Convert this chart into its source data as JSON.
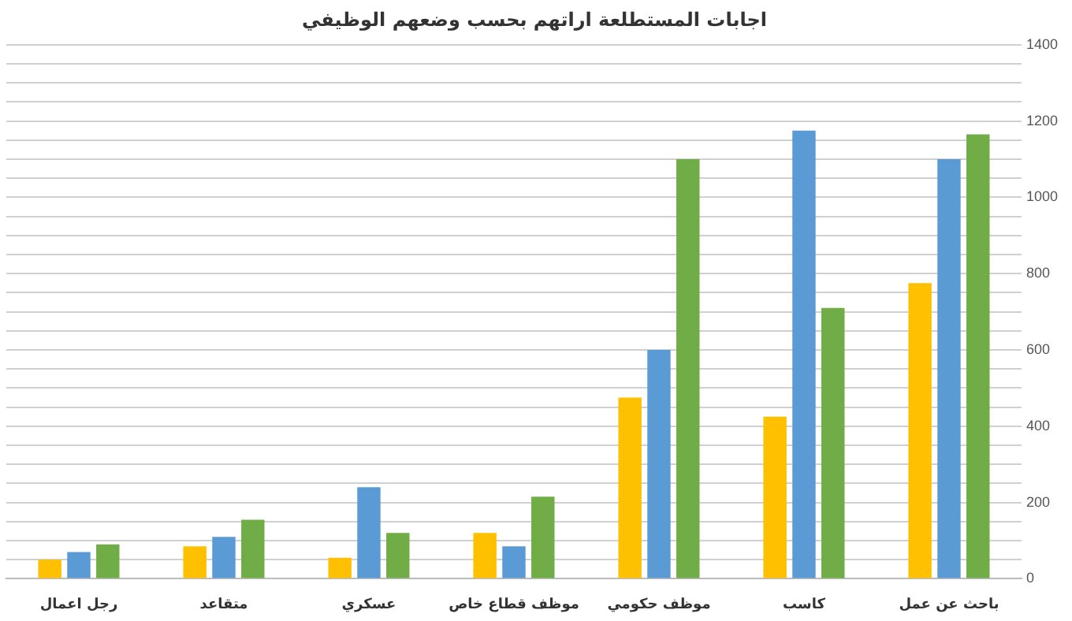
{
  "chart_data": {
    "type": "bar",
    "title": "اجابات المستطلعة اراتهم بحسب وضعهم الوظيفي",
    "categories": [
      "رجل اعمال",
      "متقاعد",
      "عسكري",
      "موظف قطاع خاص",
      "موظف حكومي",
      "كاسب",
      "باحث عن عمل"
    ],
    "series": [
      {
        "color": "#ffc000",
        "values": [
          50,
          85,
          55,
          120,
          475,
          425,
          775
        ]
      },
      {
        "color": "#5b9bd5",
        "values": [
          70,
          110,
          240,
          85,
          600,
          1175,
          1100
        ]
      },
      {
        "color": "#70ad47",
        "values": [
          90,
          155,
          120,
          215,
          1100,
          710,
          1165
        ]
      }
    ],
    "ylim": [
      0,
      1400
    ],
    "yticks": [
      0,
      {
        "value": 50,
        "label": null
      },
      {
        "value": 100,
        "label": null
      },
      {
        "value": 150,
        "label": null
      },
      200,
      {
        "value": 250,
        "label": null
      },
      {
        "value": 300,
        "label": null
      },
      {
        "value": 350,
        "label": null
      },
      400,
      {
        "value": 450,
        "label": null
      },
      {
        "value": 500,
        "label": null
      },
      {
        "value": 550,
        "label": null
      },
      600,
      {
        "value": 650,
        "label": null
      },
      {
        "value": 700,
        "label": null
      },
      {
        "value": 750,
        "label": null
      },
      800,
      {
        "value": 850,
        "label": null
      },
      {
        "value": 900,
        "label": null
      },
      {
        "value": 950,
        "label": null
      },
      1000,
      {
        "value": 1050,
        "label": null
      },
      {
        "value": 1100,
        "label": null
      },
      {
        "value": 1150,
        "label": null
      },
      1200,
      {
        "value": 1250,
        "label": null
      },
      {
        "value": 1300,
        "label": null
      },
      {
        "value": 1350,
        "label": null
      },
      1400
    ],
    "grid": "y",
    "legend": false
  }
}
